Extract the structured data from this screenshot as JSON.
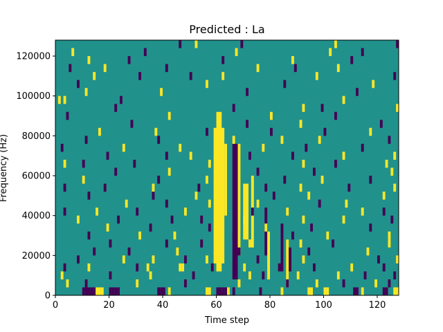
{
  "chart_data": {
    "type": "heatmap",
    "title": "Predicted : La",
    "xlabel": "Time step",
    "ylabel": "Frequency (Hz)",
    "xlim": [
      0,
      128
    ],
    "ylim": [
      0,
      128000
    ],
    "xticks": [
      0,
      20,
      40,
      60,
      80,
      100,
      120
    ],
    "yticks": [
      0,
      20000,
      40000,
      60000,
      80000,
      100000,
      120000
    ],
    "ytick_labels": [
      "0",
      "20000",
      "40000",
      "60000",
      "80000",
      "100000",
      "120000"
    ],
    "grid": false,
    "legend": "none",
    "colormap": "viridis",
    "background_value": 0,
    "colors": {
      "low": "#440154",
      "mid": "#21918c",
      "high": "#fde725"
    },
    "bin_width_hz": 4000,
    "cells": [
      {
        "t": 60,
        "f": 0,
        "v": -1
      },
      {
        "t": 61,
        "f": 0,
        "v": -1
      },
      {
        "t": 62,
        "f": 0,
        "v": -1
      },
      {
        "t": 63,
        "f": 0,
        "v": -1
      },
      {
        "t": 10,
        "f": 0,
        "v": -1
      },
      {
        "t": 11,
        "f": 0,
        "v": -1
      },
      {
        "t": 12,
        "f": 0,
        "v": -1
      },
      {
        "t": 13,
        "f": 0,
        "v": -1
      },
      {
        "t": 14,
        "f": 0,
        "v": -1
      },
      {
        "t": 15,
        "f": 0,
        "v": 1
      },
      {
        "t": 16,
        "f": 0,
        "v": 1
      },
      {
        "t": 17,
        "f": 0,
        "v": 1
      },
      {
        "t": 20,
        "f": 0,
        "v": -1
      },
      {
        "t": 21,
        "f": 0,
        "v": -1
      },
      {
        "t": 22,
        "f": 0,
        "v": -1
      },
      {
        "t": 23,
        "f": 0,
        "v": -1
      },
      {
        "t": 38,
        "f": 0,
        "v": -1
      },
      {
        "t": 39,
        "f": 0,
        "v": -1
      },
      {
        "t": 40,
        "f": 0,
        "v": -1
      },
      {
        "t": 42,
        "f": 0,
        "v": 1
      },
      {
        "t": 56,
        "f": 0,
        "v": 1
      },
      {
        "t": 57,
        "f": 0,
        "v": 1
      },
      {
        "t": 64,
        "f": 0,
        "v": 1
      },
      {
        "t": 66,
        "f": 0,
        "v": -1
      },
      {
        "t": 76,
        "f": 0,
        "v": -1
      },
      {
        "t": 84,
        "f": 0,
        "v": 1
      },
      {
        "t": 94,
        "f": 0,
        "v": 1
      },
      {
        "t": 95,
        "f": 0,
        "v": 1
      },
      {
        "t": 100,
        "f": 0,
        "v": 1
      },
      {
        "t": 101,
        "f": 0,
        "v": 1
      },
      {
        "t": 111,
        "f": 0,
        "v": -1
      },
      {
        "t": 112,
        "f": 0,
        "v": -1
      },
      {
        "t": 114,
        "f": 0,
        "v": 1
      },
      {
        "t": 122,
        "f": 0,
        "v": -1
      },
      {
        "t": 123,
        "f": 0,
        "v": -1
      },
      {
        "t": 126,
        "f": 0,
        "v": 1
      },
      {
        "t": 127,
        "f": 0,
        "v": 1
      },
      {
        "t": 11,
        "f": 4000,
        "v": -1
      },
      {
        "t": 4,
        "f": 4000,
        "v": 1
      },
      {
        "t": 30,
        "f": 4000,
        "v": 1
      },
      {
        "t": 48,
        "f": 4000,
        "v": -1
      },
      {
        "t": 68,
        "f": 4000,
        "v": 1
      },
      {
        "t": 86,
        "f": 4000,
        "v": -1
      },
      {
        "t": 97,
        "f": 4000,
        "v": 1
      },
      {
        "t": 107,
        "f": 4000,
        "v": -1
      },
      {
        "t": 119,
        "f": 4000,
        "v": 1
      },
      {
        "t": 124,
        "f": 4000,
        "v": -1
      },
      {
        "t": 2,
        "f": 8000,
        "v": 1
      },
      {
        "t": 20,
        "f": 8000,
        "v": -1
      },
      {
        "t": 35,
        "f": 8000,
        "v": 1
      },
      {
        "t": 51,
        "f": 8000,
        "v": -1
      },
      {
        "t": 72,
        "f": 8000,
        "v": 1
      },
      {
        "t": 77,
        "f": 8000,
        "v": -1
      },
      {
        "t": 90,
        "f": 8000,
        "v": 1
      },
      {
        "t": 105,
        "f": 8000,
        "v": 1
      },
      {
        "t": 115,
        "f": 8000,
        "v": -1
      },
      {
        "t": 126,
        "f": 8000,
        "v": -1
      },
      {
        "t": 3,
        "f": 12000,
        "v": -1
      },
      {
        "t": 12,
        "f": 12000,
        "v": 1
      },
      {
        "t": 30,
        "f": 12000,
        "v": -1
      },
      {
        "t": 34,
        "f": 12000,
        "v": 1
      },
      {
        "t": 46,
        "f": 12000,
        "v": 1
      },
      {
        "t": 47,
        "f": 12000,
        "v": 1
      },
      {
        "t": 58,
        "f": 12000,
        "v": -1
      },
      {
        "t": 70,
        "f": 12000,
        "v": 1
      },
      {
        "t": 83,
        "f": 12000,
        "v": -1
      },
      {
        "t": 96,
        "f": 12000,
        "v": -1
      },
      {
        "t": 110,
        "f": 12000,
        "v": 1
      },
      {
        "t": 122,
        "f": 12000,
        "v": -1
      },
      {
        "t": 8,
        "f": 16000,
        "v": -1
      },
      {
        "t": 25,
        "f": 16000,
        "v": 1
      },
      {
        "t": 36,
        "f": 16000,
        "v": 1
      },
      {
        "t": 48,
        "f": 16000,
        "v": -1
      },
      {
        "t": 56,
        "f": 16000,
        "v": 1
      },
      {
        "t": 75,
        "f": 16000,
        "v": -1
      },
      {
        "t": 92,
        "f": 16000,
        "v": 1
      },
      {
        "t": 120,
        "f": 16000,
        "v": -1
      },
      {
        "t": 127,
        "f": 16000,
        "v": 1
      },
      {
        "t": 14,
        "f": 20000,
        "v": -1
      },
      {
        "t": 27,
        "f": 20000,
        "v": -1
      },
      {
        "t": 45,
        "f": 20000,
        "v": 1
      },
      {
        "t": 68,
        "f": 20000,
        "v": -1
      },
      {
        "t": 94,
        "f": 20000,
        "v": -1
      },
      {
        "t": 116,
        "f": 20000,
        "v": 1
      },
      {
        "t": 20,
        "f": 24000,
        "v": -1
      },
      {
        "t": 41,
        "f": 24000,
        "v": -1
      },
      {
        "t": 54,
        "f": 24000,
        "v": -1
      },
      {
        "t": 72,
        "f": 24000,
        "v": 1
      },
      {
        "t": 91,
        "f": 24000,
        "v": 1
      },
      {
        "t": 103,
        "f": 24000,
        "v": -1
      },
      {
        "t": 124,
        "f": 24000,
        "v": 1
      },
      {
        "t": 12,
        "f": 28000,
        "v": -1
      },
      {
        "t": 31,
        "f": 28000,
        "v": 1
      },
      {
        "t": 44,
        "f": 28000,
        "v": 1
      },
      {
        "t": 66,
        "f": 28000,
        "v": -1
      },
      {
        "t": 88,
        "f": 28000,
        "v": -1
      },
      {
        "t": 101,
        "f": 28000,
        "v": 1
      },
      {
        "t": 124,
        "f": 28000,
        "v": 1
      },
      {
        "t": 19,
        "f": 32000,
        "v": 1
      },
      {
        "t": 35,
        "f": 32000,
        "v": -1
      },
      {
        "t": 57,
        "f": 32000,
        "v": -1
      },
      {
        "t": 78,
        "f": 32000,
        "v": 1
      },
      {
        "t": 95,
        "f": 32000,
        "v": -1
      },
      {
        "t": 117,
        "f": 32000,
        "v": -1
      },
      {
        "t": 8,
        "f": 36000,
        "v": 1
      },
      {
        "t": 23,
        "f": 36000,
        "v": -1
      },
      {
        "t": 43,
        "f": 36000,
        "v": -1
      },
      {
        "t": 54,
        "f": 36000,
        "v": -1
      },
      {
        "t": 70,
        "f": 36000,
        "v": 1
      },
      {
        "t": 92,
        "f": 36000,
        "v": 1
      },
      {
        "t": 107,
        "f": 36000,
        "v": 1
      },
      {
        "t": 125,
        "f": 36000,
        "v": -1
      },
      {
        "t": 3,
        "f": 40000,
        "v": -1
      },
      {
        "t": 15,
        "f": 40000,
        "v": 1
      },
      {
        "t": 30,
        "f": 40000,
        "v": -1
      },
      {
        "t": 48,
        "f": 40000,
        "v": 1
      },
      {
        "t": 73,
        "f": 40000,
        "v": -1
      },
      {
        "t": 86,
        "f": 40000,
        "v": 1
      },
      {
        "t": 114,
        "f": 40000,
        "v": 1
      },
      {
        "t": 122,
        "f": 40000,
        "v": -1
      },
      {
        "t": 26,
        "f": 44000,
        "v": 1
      },
      {
        "t": 41,
        "f": 44000,
        "v": -1
      },
      {
        "t": 57,
        "f": 44000,
        "v": 1
      },
      {
        "t": 75,
        "f": 44000,
        "v": 1
      },
      {
        "t": 98,
        "f": 44000,
        "v": -1
      },
      {
        "t": 108,
        "f": 44000,
        "v": 1
      },
      {
        "t": 12,
        "f": 48000,
        "v": -1
      },
      {
        "t": 36,
        "f": 48000,
        "v": -1
      },
      {
        "t": 52,
        "f": 48000,
        "v": 1
      },
      {
        "t": 81,
        "f": 48000,
        "v": -1
      },
      {
        "t": 94,
        "f": 48000,
        "v": 1
      },
      {
        "t": 122,
        "f": 48000,
        "v": 1
      },
      {
        "t": 3,
        "f": 52000,
        "v": -1
      },
      {
        "t": 18,
        "f": 52000,
        "v": -1
      },
      {
        "t": 36,
        "f": 52000,
        "v": 1
      },
      {
        "t": 53,
        "f": 52000,
        "v": -1
      },
      {
        "t": 78,
        "f": 52000,
        "v": -1
      },
      {
        "t": 91,
        "f": 52000,
        "v": 1
      },
      {
        "t": 109,
        "f": 52000,
        "v": -1
      },
      {
        "t": 126,
        "f": 52000,
        "v": 1
      },
      {
        "t": 10,
        "f": 56000,
        "v": 1
      },
      {
        "t": 38,
        "f": 56000,
        "v": -1
      },
      {
        "t": 56,
        "f": 56000,
        "v": 1
      },
      {
        "t": 85,
        "f": 56000,
        "v": -1
      },
      {
        "t": 99,
        "f": 56000,
        "v": 1
      },
      {
        "t": 117,
        "f": 56000,
        "v": -1
      },
      {
        "t": 22,
        "f": 60000,
        "v": -1
      },
      {
        "t": 42,
        "f": 60000,
        "v": 1
      },
      {
        "t": 75,
        "f": 60000,
        "v": -1
      },
      {
        "t": 96,
        "f": 60000,
        "v": -1
      },
      {
        "t": 125,
        "f": 60000,
        "v": 1
      },
      {
        "t": 3,
        "f": 64000,
        "v": 1
      },
      {
        "t": 10,
        "f": 64000,
        "v": -1
      },
      {
        "t": 29,
        "f": 64000,
        "v": -1
      },
      {
        "t": 57,
        "f": 64000,
        "v": 1
      },
      {
        "t": 92,
        "f": 64000,
        "v": 1
      },
      {
        "t": 104,
        "f": 64000,
        "v": -1
      },
      {
        "t": 123,
        "f": 64000,
        "v": 1
      },
      {
        "t": 19,
        "f": 68000,
        "v": -1
      },
      {
        "t": 41,
        "f": 68000,
        "v": -1
      },
      {
        "t": 50,
        "f": 68000,
        "v": 1
      },
      {
        "t": 72,
        "f": 68000,
        "v": -1
      },
      {
        "t": 88,
        "f": 68000,
        "v": -1
      },
      {
        "t": 107,
        "f": 68000,
        "v": 1
      },
      {
        "t": 126,
        "f": 68000,
        "v": 1
      },
      {
        "t": 2,
        "f": 72000,
        "v": -1
      },
      {
        "t": 25,
        "f": 72000,
        "v": 1
      },
      {
        "t": 46,
        "f": 72000,
        "v": 1
      },
      {
        "t": 77,
        "f": 72000,
        "v": 1
      },
      {
        "t": 93,
        "f": 72000,
        "v": -1
      },
      {
        "t": 114,
        "f": 72000,
        "v": -1
      },
      {
        "t": 11,
        "f": 76000,
        "v": -1
      },
      {
        "t": 38,
        "f": 76000,
        "v": -1
      },
      {
        "t": 66,
        "f": 76000,
        "v": 1
      },
      {
        "t": 84,
        "f": 76000,
        "v": 1
      },
      {
        "t": 98,
        "f": 76000,
        "v": 1
      },
      {
        "t": 124,
        "f": 76000,
        "v": -1
      },
      {
        "t": 16,
        "f": 80000,
        "v": 1
      },
      {
        "t": 37,
        "f": 80000,
        "v": 1
      },
      {
        "t": 56,
        "f": 80000,
        "v": -1
      },
      {
        "t": 80,
        "f": 80000,
        "v": -1
      },
      {
        "t": 100,
        "f": 80000,
        "v": -1
      },
      {
        "t": 117,
        "f": 80000,
        "v": 1
      },
      {
        "t": 28,
        "f": 84000,
        "v": -1
      },
      {
        "t": 71,
        "f": 84000,
        "v": -1
      },
      {
        "t": 91,
        "f": 84000,
        "v": 1
      },
      {
        "t": 121,
        "f": 84000,
        "v": -1
      },
      {
        "t": 4,
        "f": 88000,
        "v": -1
      },
      {
        "t": 42,
        "f": 88000,
        "v": 1
      },
      {
        "t": 80,
        "f": 88000,
        "v": 1
      },
      {
        "t": 104,
        "f": 88000,
        "v": -1
      },
      {
        "t": 22,
        "f": 92000,
        "v": -1
      },
      {
        "t": 66,
        "f": 92000,
        "v": -1
      },
      {
        "t": 92,
        "f": 92000,
        "v": 1
      },
      {
        "t": 99,
        "f": 92000,
        "v": -1
      },
      {
        "t": 127,
        "f": 92000,
        "v": 1
      },
      {
        "t": 1,
        "f": 96000,
        "v": 1
      },
      {
        "t": 3,
        "f": 96000,
        "v": 1
      },
      {
        "t": 24,
        "f": 96000,
        "v": -1
      },
      {
        "t": 107,
        "f": 96000,
        "v": 1
      },
      {
        "t": 11,
        "f": 100000,
        "v": 1
      },
      {
        "t": 39,
        "f": 100000,
        "v": 1
      },
      {
        "t": 71,
        "f": 100000,
        "v": -1
      },
      {
        "t": 112,
        "f": 100000,
        "v": -1
      },
      {
        "t": 8,
        "f": 104000,
        "v": -1
      },
      {
        "t": 56,
        "f": 104000,
        "v": 1
      },
      {
        "t": 85,
        "f": 104000,
        "v": -1
      },
      {
        "t": 118,
        "f": 104000,
        "v": 1
      },
      {
        "t": 14,
        "f": 108000,
        "v": 1
      },
      {
        "t": 31,
        "f": 108000,
        "v": -1
      },
      {
        "t": 50,
        "f": 108000,
        "v": -1
      },
      {
        "t": 62,
        "f": 108000,
        "v": 1
      },
      {
        "t": 97,
        "f": 108000,
        "v": 1
      },
      {
        "t": 126,
        "f": 108000,
        "v": -1
      },
      {
        "t": 5,
        "f": 112000,
        "v": -1
      },
      {
        "t": 18,
        "f": 112000,
        "v": 1
      },
      {
        "t": 41,
        "f": 112000,
        "v": -1
      },
      {
        "t": 75,
        "f": 112000,
        "v": 1
      },
      {
        "t": 89,
        "f": 112000,
        "v": -1
      },
      {
        "t": 105,
        "f": 112000,
        "v": 1
      },
      {
        "t": 12,
        "f": 116000,
        "v": 1
      },
      {
        "t": 27,
        "f": 116000,
        "v": -1
      },
      {
        "t": 62,
        "f": 116000,
        "v": -1
      },
      {
        "t": 88,
        "f": 116000,
        "v": 1
      },
      {
        "t": 110,
        "f": 116000,
        "v": -1
      },
      {
        "t": 6,
        "f": 120000,
        "v": 1
      },
      {
        "t": 33,
        "f": 120000,
        "v": -1
      },
      {
        "t": 67,
        "f": 120000,
        "v": 1
      },
      {
        "t": 102,
        "f": 120000,
        "v": 1
      },
      {
        "t": 114,
        "f": 120000,
        "v": -1
      },
      {
        "t": 46,
        "f": 124000,
        "v": -1
      },
      {
        "t": 52,
        "f": 124000,
        "v": 1
      },
      {
        "t": 69,
        "f": 124000,
        "v": -1
      },
      {
        "t": 104,
        "f": 124000,
        "v": 1
      },
      {
        "t": 127,
        "f": 124000,
        "v": -1
      }
    ],
    "bands": [
      {
        "t0": 59,
        "t1": 63,
        "f0": 16000,
        "f1": 84000,
        "v": 1
      },
      {
        "t0": 60,
        "t1": 62,
        "f0": 12000,
        "f1": 92000,
        "v": 1
      },
      {
        "t0": 63,
        "t1": 64,
        "f0": 40000,
        "f1": 76000,
        "v": 1
      },
      {
        "t0": 66,
        "t1": 68,
        "f0": 8000,
        "f1": 76000,
        "v": -1
      },
      {
        "t0": 68,
        "t1": 69,
        "f0": 20000,
        "f1": 76000,
        "v": 1
      },
      {
        "t0": 70,
        "t1": 72,
        "f0": 28000,
        "f1": 56000,
        "v": 1
      },
      {
        "t0": 73,
        "t1": 74,
        "f0": 24000,
        "f1": 60000,
        "v": 1
      },
      {
        "t0": 78,
        "t1": 79,
        "f0": 20000,
        "f1": 44000,
        "v": -1
      },
      {
        "t0": 79,
        "t1": 80,
        "f0": 8000,
        "f1": 32000,
        "v": 1
      },
      {
        "t0": 84,
        "t1": 85,
        "f0": 12000,
        "f1": 36000,
        "v": -1
      },
      {
        "t0": 86,
        "t1": 87,
        "f0": 4000,
        "f1": 28000,
        "v": 1
      },
      {
        "t0": 87,
        "t1": 88,
        "f0": 12000,
        "f1": 24000,
        "v": -1
      }
    ]
  }
}
